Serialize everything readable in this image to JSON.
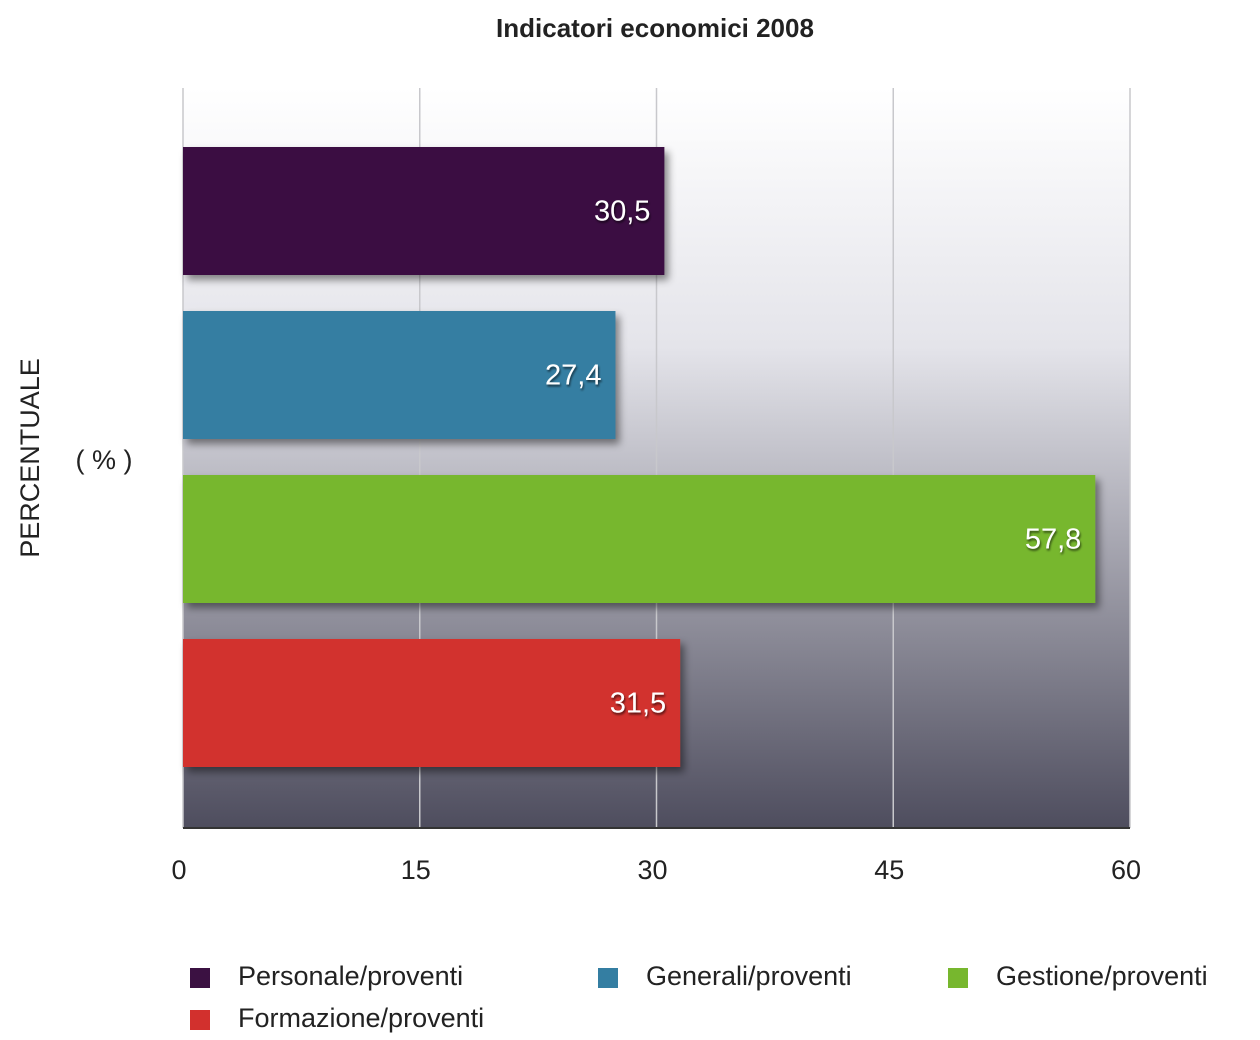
{
  "chart_data": {
    "type": "hbar",
    "title": "Indicatori economici 2008",
    "y_label": "PERCENTUALE",
    "y_label_unit": "( % )",
    "xlim": [
      0,
      60
    ],
    "xticks": [
      0,
      15,
      30,
      45,
      60
    ],
    "grid": true,
    "series": [
      {
        "name": "Personale/proventi",
        "color": "#3b1142",
        "values": [
          30.5
        ],
        "value_labels": [
          "30,5"
        ]
      },
      {
        "name": "Generali/proventi",
        "color": "#347ea2",
        "values": [
          27.4
        ],
        "value_labels": [
          "27,4"
        ]
      },
      {
        "name": "Gestione/proventi",
        "color": "#77b72e",
        "values": [
          57.8
        ],
        "value_labels": [
          "57,8"
        ]
      },
      {
        "name": "Formazione/proventi",
        "color": "#d2302d",
        "values": [
          31.5
        ],
        "value_labels": [
          "31,5"
        ]
      }
    ]
  }
}
